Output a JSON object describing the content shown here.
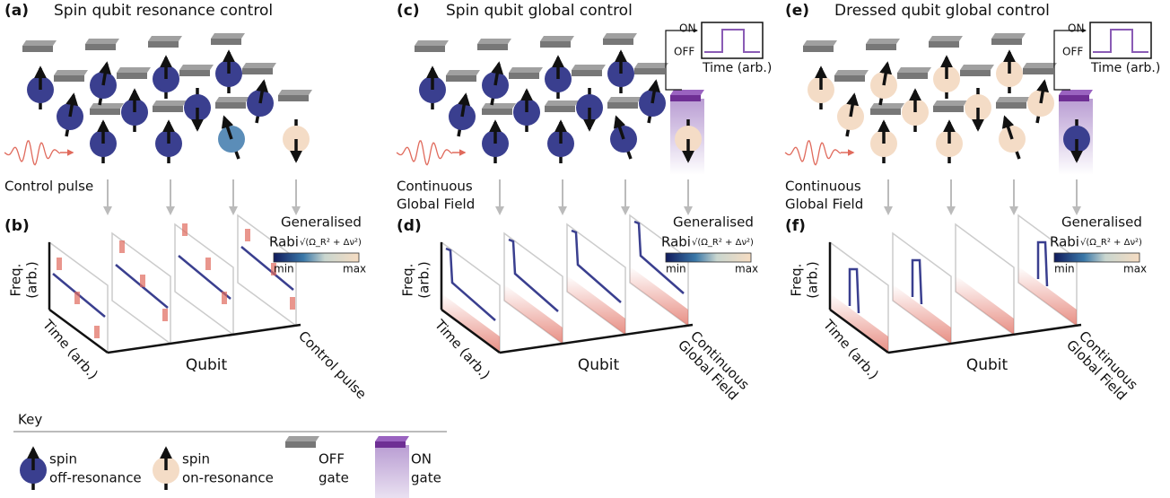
{
  "panels": [
    {
      "label": "(a)",
      "title": "Spin qubit resonance control",
      "field_label": [
        "Control pulse"
      ]
    },
    {
      "label": "(c)",
      "title": "Spin qubit global control",
      "field_label": [
        "Continuous",
        "Global Field"
      ],
      "inset": {
        "on": "ON",
        "off": "OFF",
        "time": "Time (arb.)"
      }
    },
    {
      "label": "(e)",
      "title": "Dressed qubit global control",
      "field_label": [
        "Continuous",
        "Global Field"
      ],
      "inset": {
        "on": "ON",
        "off": "OFF",
        "time": "Time (arb.)"
      }
    }
  ],
  "plots": [
    {
      "label": "(b)",
      "colorbar": {
        "title": "Generalised",
        "name": "Rabi",
        "formula": "√(Ω_R² + Δν²)",
        "min": "min",
        "max": "max"
      },
      "freq_axis": [
        "Freq.",
        "(arb.)"
      ],
      "time_axis": "Time (arb.)",
      "qubit_axis": "Qubit",
      "field_label": [
        "Control pulse"
      ]
    },
    {
      "label": "(d)",
      "colorbar": {
        "title": "Generalised",
        "name": "Rabi",
        "formula": "√(Ω_R² + Δν²)",
        "min": "min",
        "max": "max"
      },
      "freq_axis": [
        "Freq.",
        "(arb.)"
      ],
      "time_axis": "Time (arb.)",
      "qubit_axis": "Qubit",
      "field_label": [
        "Continuous",
        "Global Field"
      ]
    },
    {
      "label": "(f)",
      "colorbar": {
        "title": "Generalised",
        "name": "Rabi",
        "formula": "√(Ω_R² + Δν²)",
        "min": "min",
        "max": "max"
      },
      "freq_axis": [
        "Freq.",
        "(arb.)"
      ],
      "time_axis": "Time (arb.)",
      "qubit_axis": "Qubit",
      "field_label": [
        "Continuous",
        "Global Field"
      ]
    }
  ],
  "key": {
    "title": "Key",
    "items": [
      {
        "label": [
          "spin",
          "off-resonance"
        ]
      },
      {
        "label": [
          "spin",
          "on-resonance"
        ]
      },
      {
        "label": [
          "OFF",
          "gate"
        ]
      },
      {
        "label": [
          "ON",
          "gate"
        ]
      }
    ]
  }
}
